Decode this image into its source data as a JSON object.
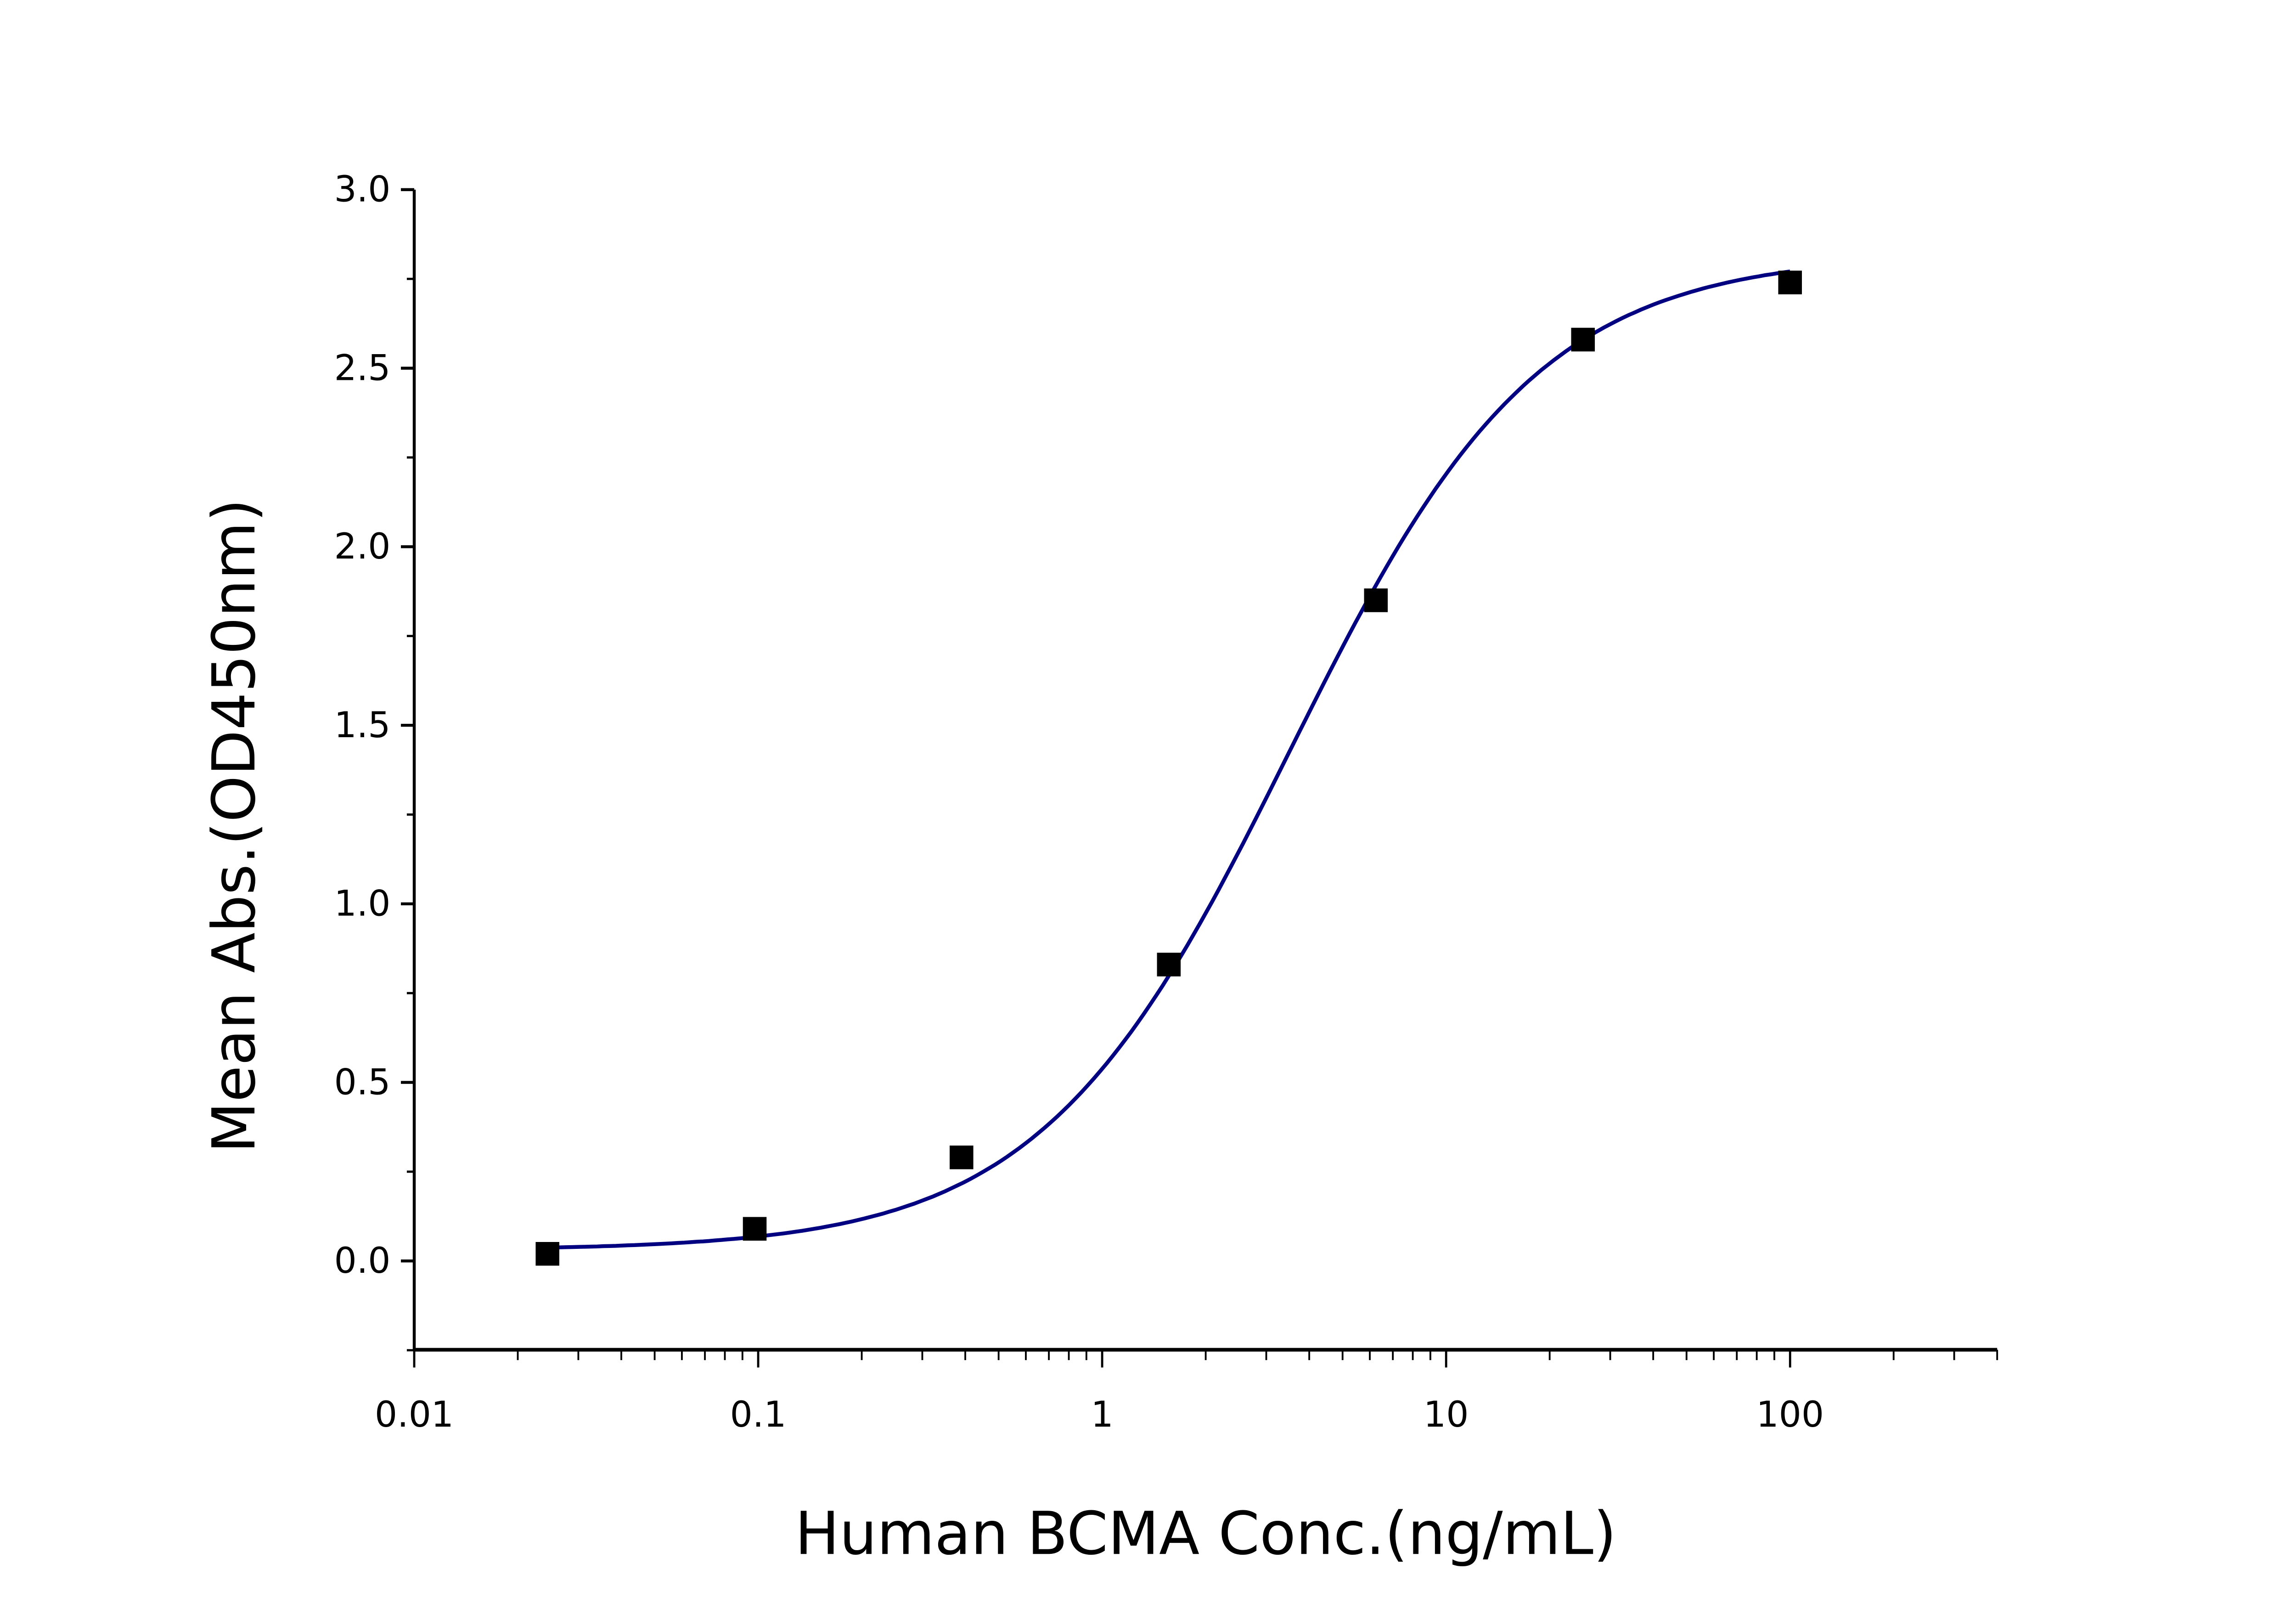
{
  "chart_data": {
    "type": "scatter",
    "title": "",
    "xlabel": "Human BCMA Conc.(ng/mL)",
    "ylabel": "Mean Abs.(OD450nm)",
    "x_scale": "log",
    "xlim": [
      0.01,
      400
    ],
    "ylim": [
      -0.25,
      3.0
    ],
    "x_ticks": [
      0.01,
      0.1,
      1,
      10,
      100
    ],
    "x_tick_labels": [
      "0.01",
      "0.1",
      "1",
      "10",
      "100"
    ],
    "y_ticks": [
      0.0,
      0.5,
      1.0,
      1.5,
      2.0,
      2.5,
      3.0
    ],
    "y_tick_labels": [
      "0.0",
      "0.5",
      "1.0",
      "1.5",
      "2.0",
      "2.5",
      "3.0"
    ],
    "grid": false,
    "legend": "none",
    "series": [
      {
        "marker": "square",
        "color": "#000000",
        "x": [
          0.0244,
          0.0977,
          0.39,
          1.5625,
          6.25,
          25,
          100
        ],
        "y": [
          0.02,
          0.09,
          0.29,
          0.83,
          1.85,
          2.58,
          2.74
        ]
      }
    ],
    "fit_curve": {
      "type": "sigmoidal fit",
      "color": "#000080"
    }
  }
}
